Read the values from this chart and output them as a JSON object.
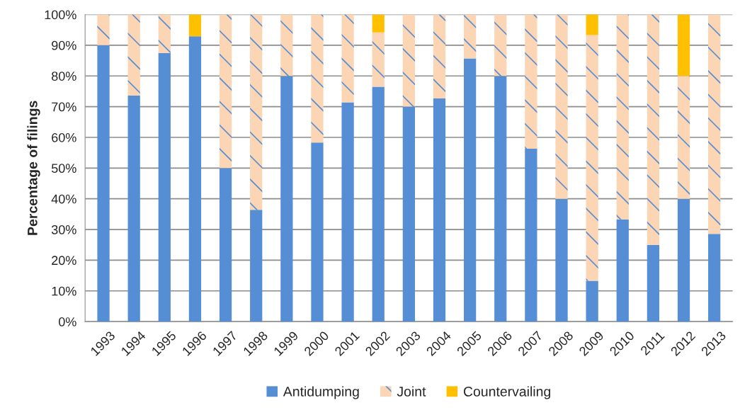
{
  "chart_data": {
    "type": "bar",
    "stacked": true,
    "ylabel": "Percentage of filings",
    "categories": [
      "1993",
      "1994",
      "1995",
      "1996",
      "1997",
      "1998",
      "1999",
      "2000",
      "2001",
      "2002",
      "2003",
      "2004",
      "2005",
      "2006",
      "2007",
      "2008",
      "2009",
      "2010",
      "2011",
      "2012",
      "2013"
    ],
    "series": [
      {
        "name": "Antidumping",
        "color": "#558ed5",
        "values": [
          90,
          73.6,
          87.5,
          92.9,
          50,
          36.4,
          80,
          58.3,
          71.4,
          76.5,
          70,
          72.7,
          85.7,
          80,
          56.3,
          40,
          13.3,
          33.3,
          25,
          40,
          28.6
        ]
      },
      {
        "name": "Joint",
        "color": "#fcd5b4",
        "values": [
          10,
          26.4,
          12.5,
          0,
          50,
          63.6,
          20,
          41.7,
          28.6,
          17.7,
          30,
          27.3,
          14.3,
          20,
          43.7,
          60,
          80,
          66.7,
          75,
          40,
          71.4
        ]
      },
      {
        "name": "Countervailing",
        "color": "#ffc000",
        "values": [
          0,
          0,
          0,
          7.1,
          0,
          0,
          0,
          0,
          0,
          5.8,
          0,
          0,
          0,
          0,
          0,
          0,
          6.7,
          0,
          0,
          20,
          0
        ]
      }
    ],
    "ylim": [
      0,
      100
    ],
    "yticks": [
      {
        "value": 0,
        "label": "0%"
      },
      {
        "value": 10,
        "label": "10%"
      },
      {
        "value": 20,
        "label": "20%"
      },
      {
        "value": 30,
        "label": "30%"
      },
      {
        "value": 40,
        "label": "40%"
      },
      {
        "value": 50,
        "label": "50%"
      },
      {
        "value": 60,
        "label": "60%"
      },
      {
        "value": 70,
        "label": "70%"
      },
      {
        "value": 80,
        "label": "80%"
      },
      {
        "value": 90,
        "label": "90%"
      },
      {
        "value": 100,
        "label": "100%"
      }
    ],
    "grid": "y",
    "legend": "bottom"
  }
}
